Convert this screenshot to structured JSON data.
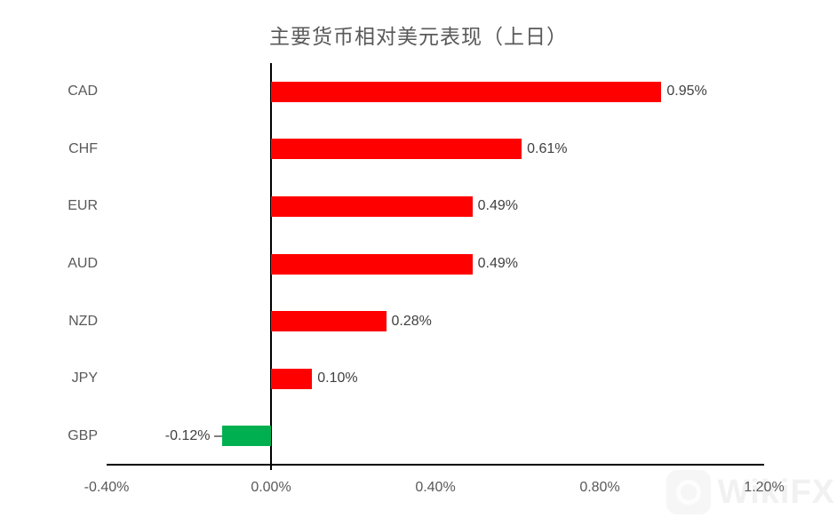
{
  "title": "主要货币相对美元表现（上日）",
  "watermark": {
    "text": "WikiFX",
    "logo": "wikifx-aperture-logo"
  },
  "colors": {
    "positive_bar": "#ff0000",
    "negative_bar": "#00b050",
    "axis": "#000000",
    "category_text": "#595959",
    "value_text": "#404040",
    "tick_text": "#595959",
    "leader_line": "#808080",
    "watermark_text": "#f1f1f1"
  },
  "chart_data": {
    "type": "bar",
    "orientation": "horizontal",
    "title": "主要货币相对美元表现（上日）",
    "categories": [
      "CAD",
      "CHF",
      "EUR",
      "AUD",
      "NZD",
      "JPY",
      "GBP"
    ],
    "values": [
      0.95,
      0.61,
      0.49,
      0.49,
      0.28,
      0.1,
      -0.12
    ],
    "value_labels": [
      "0.95%",
      "0.61%",
      "0.49%",
      "0.49%",
      "0.28%",
      "0.10%",
      "-0.12%"
    ],
    "x_ticks": [
      "-0.40%",
      "0.00%",
      "0.40%",
      "0.80%",
      "1.20%"
    ],
    "x_tick_values": [
      -0.4,
      0.0,
      0.4,
      0.8,
      1.2
    ],
    "xlim": [
      -0.4,
      1.2
    ],
    "unit": "%",
    "grid": false,
    "legend": false,
    "bar_color_positive": "#ff0000",
    "bar_color_negative": "#00b050",
    "negative_labels_use_leader_line": true
  }
}
